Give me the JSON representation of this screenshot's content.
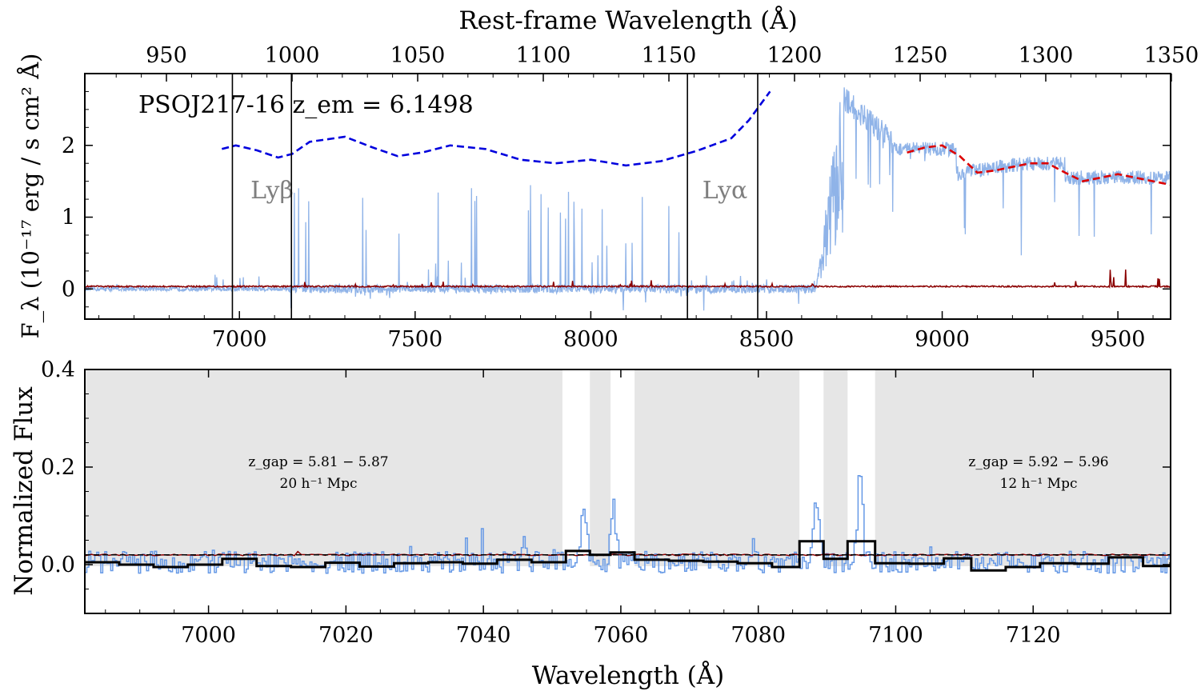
{
  "chart_data": [
    {
      "type": "line",
      "panel": "top",
      "xlabel": "",
      "top_axis_label": "Rest-frame Wavelength (Å)",
      "ylabel": "F_λ (10⁻¹⁷ erg / s cm² Å)",
      "annotation": "PSOJ217-16 z_em = 6.1498",
      "xlim": [
        6560,
        9650
      ],
      "ylim": [
        -0.42,
        3.0
      ],
      "xticks": [
        "7000",
        "7500",
        "8000",
        "8500",
        "9000",
        "9500"
      ],
      "yticks": [
        "0",
        "1",
        "2"
      ],
      "top_ticks": [
        "950",
        "1000",
        "1050",
        "1100",
        "1150",
        "1200",
        "1250",
        "1300",
        "1350"
      ],
      "vertical_lines_obs": [
        6980,
        7148,
        8275,
        8475
      ],
      "line_labels": [
        {
          "text": "Lyβ",
          "x": 7060,
          "y": 1.35
        },
        {
          "text": "Lyα",
          "x": 8370,
          "y": 1.35
        }
      ],
      "series": [
        {
          "role": "flux",
          "color": "#8fb3e8"
        },
        {
          "role": "error",
          "color": "#8b0000"
        },
        {
          "role": "continuum-fit",
          "color": "#0000dd",
          "x": [
            6950,
            6990,
            7050,
            7110,
            7150,
            7200,
            7300,
            7380,
            7450,
            7520,
            7600,
            7700,
            7800,
            7900,
            8000,
            8100,
            8200,
            8300,
            8400,
            8450,
            8510
          ],
          "y": [
            1.95,
            2.0,
            1.93,
            1.83,
            1.88,
            2.05,
            2.12,
            1.97,
            1.85,
            1.9,
            2.0,
            1.95,
            1.8,
            1.75,
            1.8,
            1.72,
            1.78,
            1.92,
            2.1,
            2.35,
            2.75
          ]
        },
        {
          "role": "red-side-fit",
          "color": "#dd0000",
          "x": [
            8900,
            8950,
            9000,
            9050,
            9100,
            9150,
            9200,
            9250,
            9300,
            9350,
            9400,
            9450,
            9500,
            9550,
            9600,
            9650
          ],
          "y": [
            1.9,
            1.97,
            2.0,
            1.85,
            1.62,
            1.65,
            1.7,
            1.75,
            1.75,
            1.62,
            1.5,
            1.55,
            1.6,
            1.55,
            1.5,
            1.45
          ]
        }
      ]
    },
    {
      "type": "line",
      "panel": "bottom",
      "xlabel": "Wavelength (Å)",
      "ylabel": "Normalized Flux",
      "xlim": [
        6982,
        7140
      ],
      "ylim": [
        -0.1,
        0.4
      ],
      "xticks": [
        "7000",
        "7020",
        "7040",
        "7060",
        "7080",
        "7100",
        "7120"
      ],
      "yticks": [
        "0.0",
        "0.2",
        "0.4"
      ],
      "shaded_regions": [
        [
          6982,
          7051.5
        ],
        [
          7055.5,
          7058.5
        ],
        [
          7062,
          7086
        ],
        [
          7089.5,
          7093
        ],
        [
          7097,
          7140
        ]
      ],
      "annotations": [
        {
          "line1": "z_gap = 5.81 − 5.87",
          "line2": "20 h⁻¹ Mpc",
          "x": 7015,
          "y": 0.205
        },
        {
          "line1": "z_gap = 5.92 − 5.96",
          "line2": "12 h⁻¹ Mpc",
          "x": 7122,
          "y": 0.205
        }
      ],
      "series": [
        {
          "role": "flux",
          "color": "#6699e6"
        },
        {
          "role": "error",
          "color": "#8b0000"
        },
        {
          "role": "continuum-level",
          "color": "#000000",
          "style": "dashed",
          "value": 0.02
        },
        {
          "role": "binned-flux",
          "color": "#000000",
          "edges": [
            6982,
            6987,
            6992,
            6997,
            7002,
            7007,
            7012,
            7017,
            7022,
            7027,
            7032,
            7037,
            7042,
            7047,
            7052,
            7055.5,
            7058.5,
            7062,
            7067,
            7072,
            7077,
            7082,
            7086,
            7089.5,
            7093,
            7097,
            7102,
            7107,
            7111,
            7116,
            7121,
            7126,
            7131,
            7136,
            7140
          ],
          "values": [
            0.005,
            0.0,
            -0.005,
            0.0,
            0.012,
            -0.003,
            -0.005,
            0.004,
            -0.004,
            0.003,
            0.005,
            0.002,
            0.01,
            0.005,
            0.028,
            0.02,
            0.025,
            0.01,
            0.008,
            0.006,
            0.003,
            -0.005,
            0.048,
            0.012,
            0.048,
            0.003,
            0.002,
            0.013,
            -0.012,
            -0.005,
            0.003,
            0.002,
            0.015,
            -0.003,
            0.005
          ]
        }
      ]
    }
  ]
}
